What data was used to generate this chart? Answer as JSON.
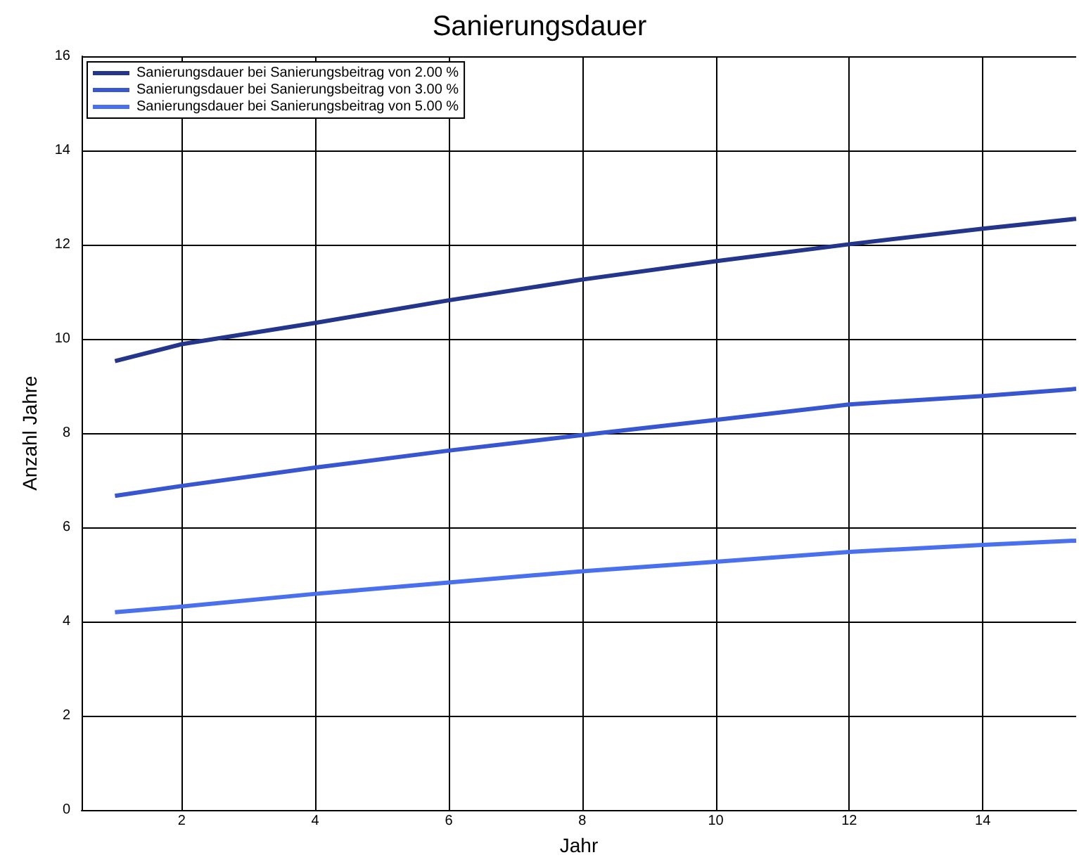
{
  "chart_data": {
    "type": "line",
    "title": "Sanierungsdauer",
    "xlabel": "Jahr",
    "ylabel": "Anzahl Jahre",
    "xlim": [
      0.5,
      15.4
    ],
    "xticks": [
      2,
      4,
      6,
      8,
      10,
      12,
      14
    ],
    "ylim": [
      0,
      16
    ],
    "yticks": [
      0,
      2,
      4,
      6,
      8,
      10,
      12,
      14,
      16
    ],
    "grid": true,
    "legend": "top left",
    "marker": "none",
    "line_style": "solid",
    "series": [
      {
        "name": "Sanierungsdauer bei Sanierungsbeitrag von 2.00 %",
        "color": "#24358c",
        "x": [
          1,
          2,
          4,
          6,
          8,
          10,
          12,
          14,
          15.4
        ],
        "values": [
          9.53,
          9.89,
          10.34,
          10.82,
          11.26,
          11.65,
          12.01,
          12.34,
          12.55
        ]
      },
      {
        "name": "Sanierungsdauer bei Sanierungsbeitrag von 3.00 %",
        "color": "#3856d0",
        "x": [
          1,
          2,
          4,
          6,
          8,
          10,
          12,
          14,
          15.4
        ],
        "values": [
          6.67,
          6.88,
          7.27,
          7.63,
          7.96,
          8.28,
          8.61,
          8.79,
          8.94
        ]
      },
      {
        "name": "Sanierungsdauer bei Sanierungsbeitrag von 5.00 %",
        "color": "#4a70ee",
        "x": [
          1,
          2,
          4,
          6,
          8,
          10,
          12,
          14,
          15.4
        ],
        "values": [
          4.2,
          4.32,
          4.59,
          4.83,
          5.07,
          5.27,
          5.48,
          5.63,
          5.72
        ]
      }
    ]
  }
}
